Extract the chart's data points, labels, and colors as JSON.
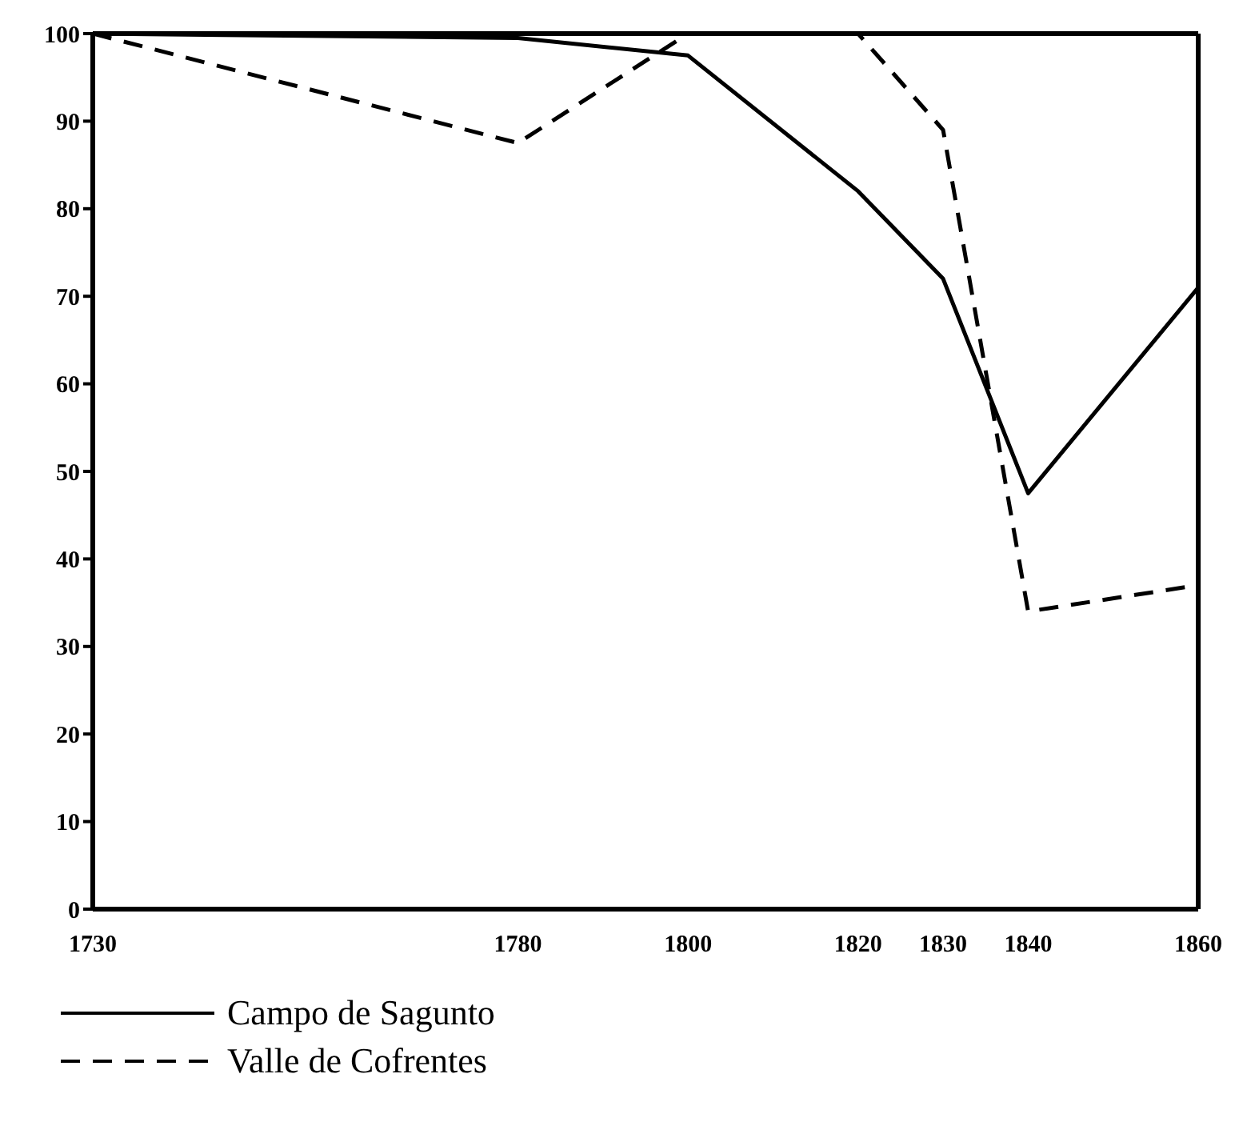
{
  "chart_data": {
    "type": "line",
    "x": [
      1730,
      1780,
      1800,
      1820,
      1830,
      1840,
      1860
    ],
    "series": [
      {
        "name": "Campo de Sagunto",
        "color": "#000000",
        "line_style": "solid",
        "values": [
          100,
          99.5,
          97.5,
          82,
          72,
          47.5,
          71
        ]
      },
      {
        "name": "Valle de Cofrentes",
        "color": "#000000",
        "line_style": "dashed",
        "values": [
          100,
          87.5,
          100,
          100,
          89,
          34,
          37
        ]
      }
    ],
    "xlim": [
      1730,
      1860
    ],
    "xticks": [
      1730,
      1780,
      1800,
      1820,
      1830,
      1840,
      1860
    ],
    "ylim": [
      0,
      100
    ],
    "yticks": [
      0,
      10,
      20,
      30,
      40,
      50,
      60,
      70,
      80,
      90,
      100
    ],
    "grid": false,
    "legend": "bottom",
    "marker": "none"
  }
}
